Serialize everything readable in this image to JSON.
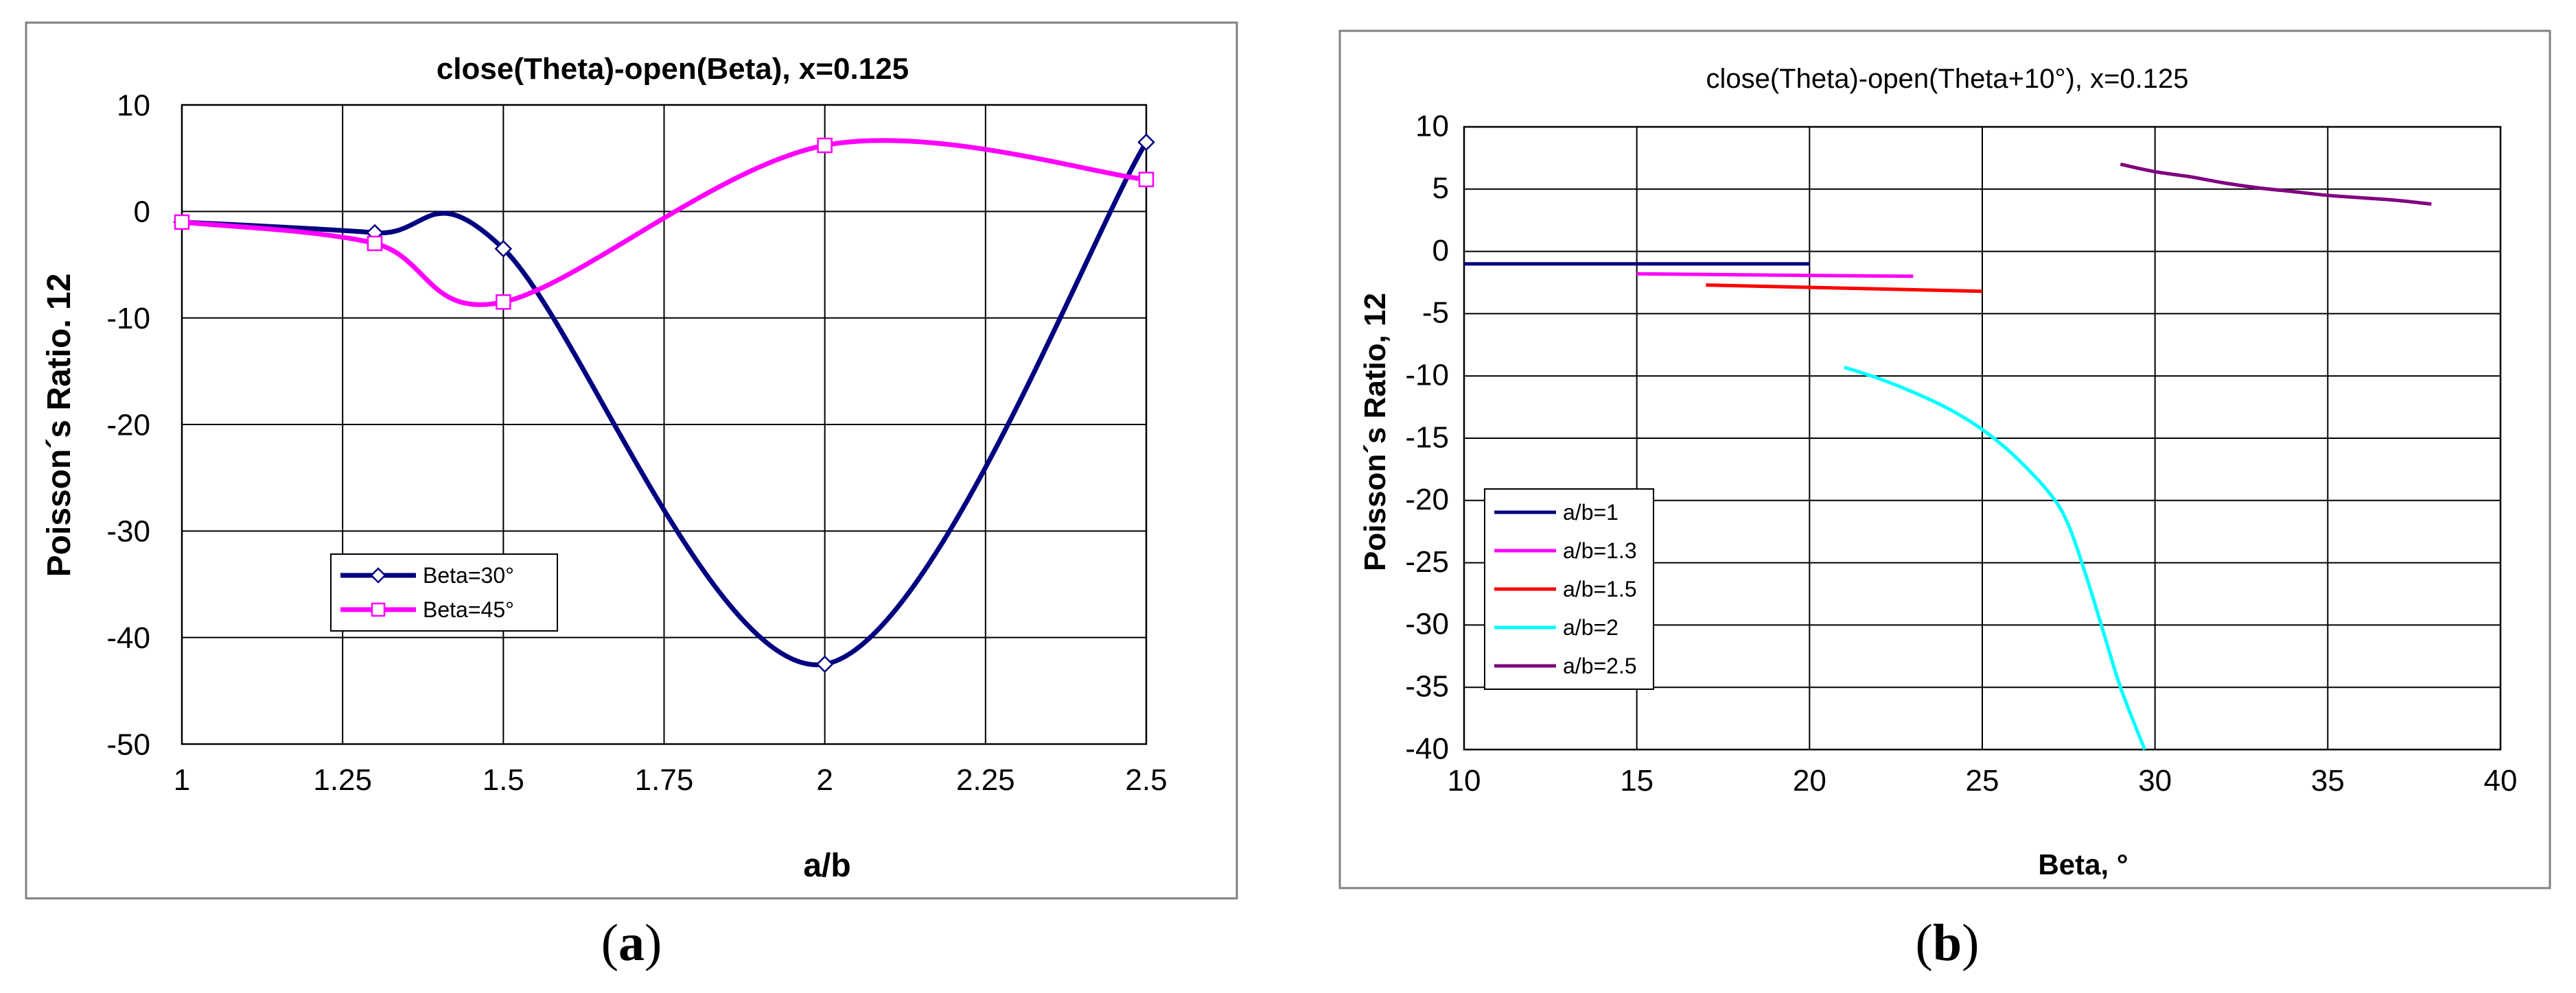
{
  "chart_data": [
    {
      "type": "line",
      "panel_label": "a",
      "title": "close(Theta)-open(Beta), x=0.125",
      "xlabel": "a/b",
      "ylabel": "Poisson´s Ratio. 12",
      "xlim": [
        1,
        2.5
      ],
      "ylim": [
        -50,
        10
      ],
      "x_ticks": [
        1,
        1.25,
        1.5,
        1.75,
        2,
        2.25,
        2.5
      ],
      "x_tick_labels": [
        "1",
        "1.25",
        "1.5",
        "1.75",
        "2",
        "2.25",
        "2.5"
      ],
      "y_ticks": [
        10,
        0,
        -10,
        -20,
        -30,
        -40,
        -50
      ],
      "y_tick_labels": [
        "10",
        "0",
        "-10",
        "-20",
        "-30",
        "-40",
        "-50"
      ],
      "grid": true,
      "legend_position": "lower-left",
      "series": [
        {
          "name": "Beta=30°",
          "color": "#000080",
          "marker": "diamond",
          "x": [
            1,
            1.3,
            1.5,
            2,
            2.5
          ],
          "y": [
            -1,
            -2,
            -3.5,
            -42.5,
            6.5
          ]
        },
        {
          "name": "Beta=45°",
          "color": "#FF00FF",
          "marker": "square",
          "x": [
            1,
            1.3,
            1.5,
            2,
            2.5
          ],
          "y": [
            -1,
            -3,
            -8.5,
            6.2,
            3
          ]
        }
      ]
    },
    {
      "type": "line",
      "panel_label": "b",
      "title": "close(Theta)-open(Theta+10°), x=0.125",
      "xlabel": "Beta, °",
      "ylabel": "Poisson´s Ratio, 12",
      "xlim": [
        10,
        40
      ],
      "ylim": [
        -40,
        10
      ],
      "x_ticks": [
        10,
        15,
        20,
        25,
        30,
        35,
        40
      ],
      "x_tick_labels": [
        "10",
        "15",
        "20",
        "25",
        "30",
        "35",
        "40"
      ],
      "y_ticks": [
        10,
        5,
        0,
        -5,
        -10,
        -15,
        -20,
        -25,
        -30,
        -35,
        -40
      ],
      "y_tick_labels": [
        "10",
        "5",
        "0",
        "-5",
        "-10",
        "-15",
        "-20",
        "-25",
        "-30",
        "-35",
        "-40"
      ],
      "grid": true,
      "legend_position": "lower-left",
      "series": [
        {
          "name": "a/b=1",
          "color": "#000080",
          "x": [
            10,
            20
          ],
          "y": [
            -1,
            -1
          ]
        },
        {
          "name": "a/b=1.3",
          "color": "#FF00FF",
          "x": [
            15,
            23
          ],
          "y": [
            -1.8,
            -2
          ]
        },
        {
          "name": "a/b=1.5",
          "color": "#FF0000",
          "x": [
            17,
            25
          ],
          "y": [
            -2.7,
            -3.2
          ]
        },
        {
          "name": "a/b=2",
          "color": "#00FFFF",
          "x": [
            21,
            22,
            23,
            24,
            25,
            26,
            27,
            27.5,
            28,
            28.5,
            29,
            29.7
          ],
          "y": [
            -9.3,
            -10.2,
            -11.3,
            -12.6,
            -14.3,
            -16.6,
            -19.6,
            -22,
            -26,
            -30.5,
            -35,
            -40
          ]
        },
        {
          "name": "a/b=2.5",
          "color": "#800080",
          "x": [
            29,
            30,
            31,
            32,
            33,
            34,
            35,
            36,
            37,
            38
          ],
          "y": [
            7,
            6.4,
            6,
            5.5,
            5.1,
            4.8,
            4.5,
            4.3,
            4.1,
            3.8
          ]
        }
      ]
    }
  ]
}
